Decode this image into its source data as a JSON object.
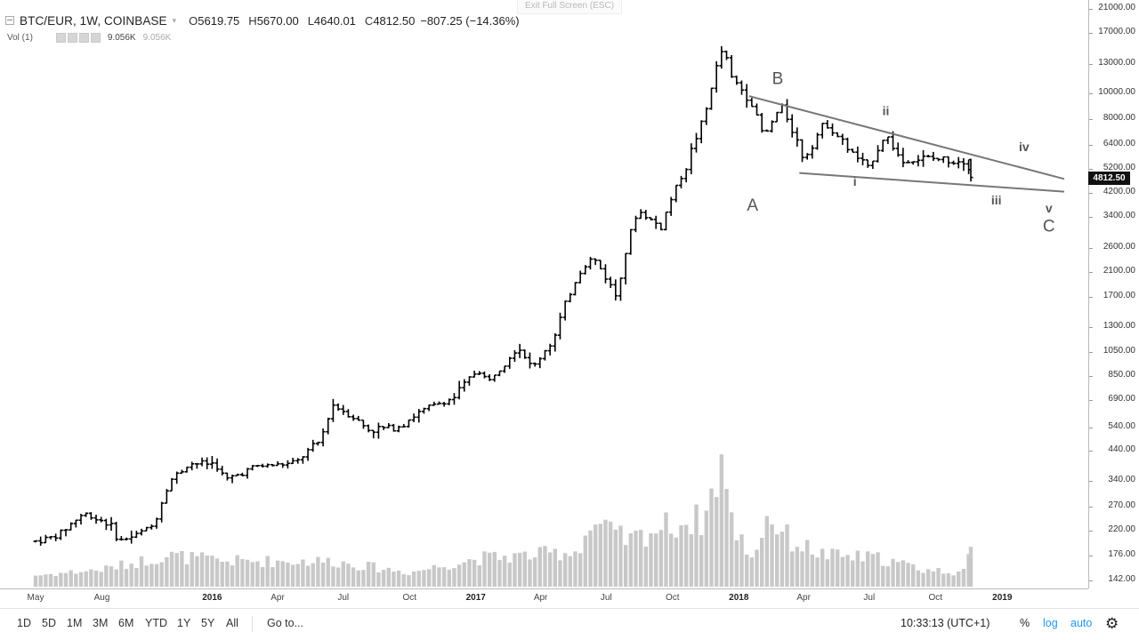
{
  "header": {
    "symbol": "BTC/EUR, 1W, COINBASE",
    "ohlc": [
      {
        "key": "O",
        "value": "5619.75"
      },
      {
        "key": "H",
        "value": "5670.00"
      },
      {
        "key": "L",
        "value": "4640.01"
      },
      {
        "key": "C",
        "value": "4812.50"
      }
    ],
    "change": "−807.25 (−14.36%)",
    "exit_fullscreen": "Exit Full Screen (ESC)"
  },
  "volume_legend": {
    "label": "Vol (1)",
    "value": "9.056K",
    "value2": "9.056K"
  },
  "price_scale": {
    "ticks": [
      "21000.00",
      "17000.00",
      "13000.00",
      "10000.00",
      "8000.00",
      "6400.00",
      "5200.00",
      "4200.00",
      "3400.00",
      "2600.00",
      "2100.00",
      "1700.00",
      "1300.00",
      "1050.00",
      "850.00",
      "690.00",
      "540.00",
      "440.00",
      "340.00",
      "270.00",
      "220.00",
      "176.00",
      "142.00"
    ],
    "last_price": "4812.50"
  },
  "time_axis": {
    "labels": [
      {
        "text": "May",
        "year": false
      },
      {
        "text": "Aug",
        "year": false
      },
      {
        "text": "2016",
        "year": true
      },
      {
        "text": "Apr",
        "year": false
      },
      {
        "text": "Jul",
        "year": false
      },
      {
        "text": "Oct",
        "year": false
      },
      {
        "text": "2017",
        "year": true
      },
      {
        "text": "Apr",
        "year": false
      },
      {
        "text": "Jul",
        "year": false
      },
      {
        "text": "Oct",
        "year": false
      },
      {
        "text": "2018",
        "year": true
      },
      {
        "text": "Apr",
        "year": false
      },
      {
        "text": "Jul",
        "year": false
      },
      {
        "text": "Oct",
        "year": false
      },
      {
        "text": "2019",
        "year": true
      }
    ]
  },
  "toolbar": {
    "ranges": [
      "1D",
      "5D",
      "1M",
      "3M",
      "6M",
      "YTD",
      "1Y",
      "5Y",
      "All"
    ],
    "goto": "Go to...",
    "clock": "10:33:13 (UTC+1)",
    "percent": "%",
    "log": "log",
    "auto": "auto",
    "settings_icon": "gear-icon"
  },
  "chart_data": {
    "type": "ohlc",
    "interval": "1W",
    "scale": "log",
    "ylim": [
      130,
      23000
    ],
    "xlim": [
      "2015-04-15",
      "2019-04-10"
    ],
    "grid": false,
    "colors": {
      "bars": "#000000",
      "volume": "#c8c8c8",
      "trendline": "#777777",
      "wave_label": "#555555"
    },
    "close_series": [
      {
        "x": "2015-05-01",
        "c": 200
      },
      {
        "x": "2015-06-01",
        "c": 210
      },
      {
        "x": "2015-07-06",
        "c": 255
      },
      {
        "x": "2015-08-10",
        "c": 235
      },
      {
        "x": "2015-08-25",
        "c": 200
      },
      {
        "x": "2015-09-15",
        "c": 210
      },
      {
        "x": "2015-10-12",
        "c": 230
      },
      {
        "x": "2015-11-04",
        "c": 340
      },
      {
        "x": "2015-12-01",
        "c": 395
      },
      {
        "x": "2016-01-05",
        "c": 395
      },
      {
        "x": "2016-01-20",
        "c": 340
      },
      {
        "x": "2016-03-01",
        "c": 385
      },
      {
        "x": "2016-04-25",
        "c": 395
      },
      {
        "x": "2016-05-30",
        "c": 480
      },
      {
        "x": "2016-06-17",
        "c": 660
      },
      {
        "x": "2016-07-12",
        "c": 600
      },
      {
        "x": "2016-08-05",
        "c": 530
      },
      {
        "x": "2016-09-15",
        "c": 545
      },
      {
        "x": "2016-10-25",
        "c": 640
      },
      {
        "x": "2016-12-01",
        "c": 700
      },
      {
        "x": "2017-01-04",
        "c": 900
      },
      {
        "x": "2017-01-18",
        "c": 800
      },
      {
        "x": "2017-03-01",
        "c": 1100
      },
      {
        "x": "2017-03-20",
        "c": 900
      },
      {
        "x": "2017-04-20",
        "c": 1180
      },
      {
        "x": "2017-05-25",
        "c": 2100
      },
      {
        "x": "2017-06-12",
        "c": 2400
      },
      {
        "x": "2017-07-15",
        "c": 1700
      },
      {
        "x": "2017-08-14",
        "c": 3600
      },
      {
        "x": "2017-09-15",
        "c": 3100
      },
      {
        "x": "2017-10-20",
        "c": 5300
      },
      {
        "x": "2017-11-15",
        "c": 8200
      },
      {
        "x": "2017-12-10",
        "c": 15000
      },
      {
        "x": "2017-12-22",
        "c": 11500
      },
      {
        "x": "2018-01-16",
        "c": 9500
      },
      {
        "x": "2018-02-05",
        "c": 6800
      },
      {
        "x": "2018-03-01",
        "c": 9000
      },
      {
        "x": "2018-04-01",
        "c": 5600
      },
      {
        "x": "2018-05-01",
        "c": 7800
      },
      {
        "x": "2018-06-01",
        "c": 6200
      },
      {
        "x": "2018-06-29",
        "c": 5200
      },
      {
        "x": "2018-07-24",
        "c": 7000
      },
      {
        "x": "2018-08-15",
        "c": 5500
      },
      {
        "x": "2018-09-15",
        "c": 5700
      },
      {
        "x": "2018-10-20",
        "c": 5600
      },
      {
        "x": "2018-11-14",
        "c": 5600
      },
      {
        "x": "2018-11-19",
        "c": 4812.5
      }
    ],
    "last_bar": {
      "x": "2018-11-19",
      "o": 5619.75,
      "h": 5670.0,
      "l": 4640.01,
      "c": 4812.5
    },
    "volume_profile": [
      {
        "x": "2015-05-01",
        "v": 0.8
      },
      {
        "x": "2015-08-01",
        "v": 1.2
      },
      {
        "x": "2015-11-01",
        "v": 2.2
      },
      {
        "x": "2016-01-15",
        "v": 1.8
      },
      {
        "x": "2016-06-15",
        "v": 1.8
      },
      {
        "x": "2016-10-01",
        "v": 1.0
      },
      {
        "x": "2017-01-05",
        "v": 2.0
      },
      {
        "x": "2017-03-15",
        "v": 2.2
      },
      {
        "x": "2017-05-20",
        "v": 2.5
      },
      {
        "x": "2017-06-12",
        "v": 4.4
      },
      {
        "x": "2017-08-01",
        "v": 3.2
      },
      {
        "x": "2017-09-15",
        "v": 4.2
      },
      {
        "x": "2017-11-15",
        "v": 4.8
      },
      {
        "x": "2017-12-08",
        "v": 9.0
      },
      {
        "x": "2017-12-22",
        "v": 4.5
      },
      {
        "x": "2018-01-20",
        "v": 2.0
      },
      {
        "x": "2018-02-10",
        "v": 5.0
      },
      {
        "x": "2018-03-15",
        "v": 3.2
      },
      {
        "x": "2018-05-01",
        "v": 2.2
      },
      {
        "x": "2018-07-15",
        "v": 2.0
      },
      {
        "x": "2018-09-15",
        "v": 1.2
      },
      {
        "x": "2018-11-12",
        "v": 1.0
      },
      {
        "x": "2018-11-19",
        "v": 2.8
      }
    ],
    "trendlines": [
      {
        "name": "upper",
        "from": {
          "x": "2018-01-15",
          "y": 9800
        },
        "to": {
          "x": "2019-03-27",
          "y": 4750
        }
      },
      {
        "name": "lower",
        "from": {
          "x": "2018-03-26",
          "y": 5000
        },
        "to": {
          "x": "2019-03-27",
          "y": 4250
        }
      }
    ],
    "annotations": [
      {
        "text": "A",
        "x": "2018-01-20",
        "y": 3600,
        "size": "large"
      },
      {
        "text": "B",
        "x": "2018-02-24",
        "y": 10900,
        "size": "large"
      },
      {
        "text": "C",
        "x": "2019-03-06",
        "y": 3000,
        "size": "large"
      },
      {
        "text": "i",
        "x": "2018-06-11",
        "y": 4480,
        "size": "small"
      },
      {
        "text": "ii",
        "x": "2018-07-24",
        "y": 8300,
        "size": "small"
      },
      {
        "text": "iii",
        "x": "2018-12-24",
        "y": 3800,
        "size": "small"
      },
      {
        "text": "iv",
        "x": "2019-01-31",
        "y": 6050,
        "size": "small"
      },
      {
        "text": "v",
        "x": "2019-03-06",
        "y": 3550,
        "size": "small"
      }
    ]
  }
}
